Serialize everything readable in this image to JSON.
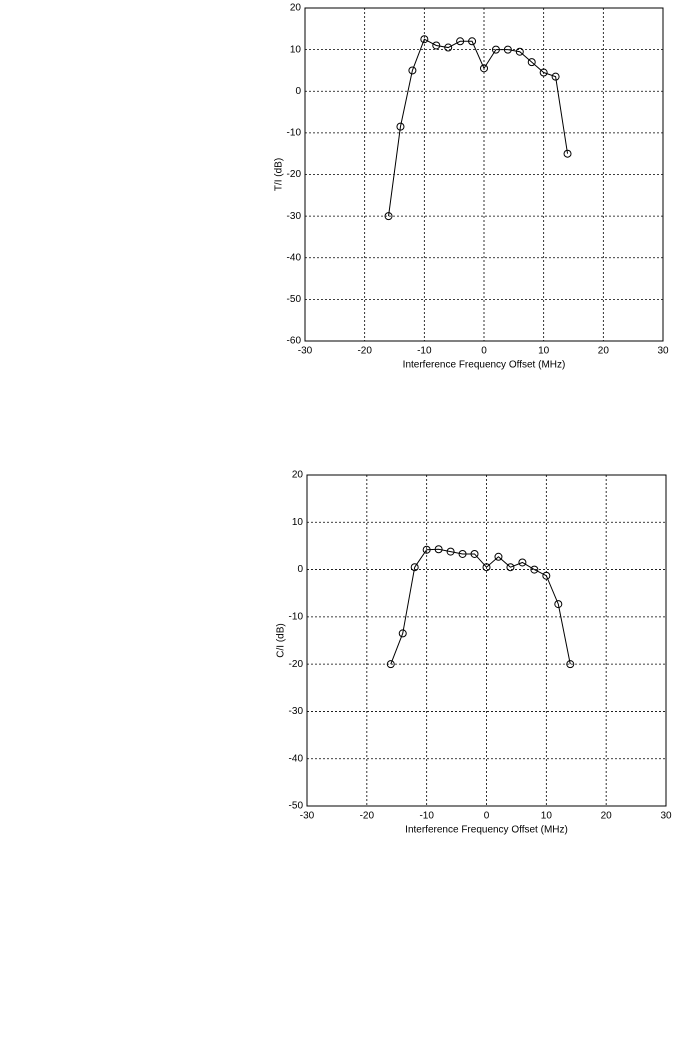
{
  "chart_data": [
    {
      "type": "line",
      "xlabel": "Interference Frequency Offset (MHz)",
      "ylabel": "T/I (dB)",
      "xlim": [
        -30,
        30
      ],
      "ylim": [
        -60,
        20
      ],
      "xticks": [
        -30,
        -20,
        -10,
        0,
        10,
        20,
        30
      ],
      "yticks": [
        -60,
        -50,
        -40,
        -30,
        -20,
        -10,
        0,
        10,
        20
      ],
      "grid": true,
      "series": [
        {
          "color": "#000000",
          "x": [
            -16,
            -14,
            -12,
            -10,
            -8,
            -6,
            -4,
            -2,
            0,
            2,
            4,
            6,
            8,
            10,
            12,
            14
          ],
          "values": [
            -30,
            -8.5,
            5,
            12.5,
            11,
            10.5,
            12,
            12,
            5.5,
            10,
            10,
            9.5,
            7,
            4.5,
            3.5,
            -15
          ]
        }
      ]
    },
    {
      "type": "line",
      "xlabel": "Interference Frequency Offset (MHz)",
      "ylabel": "C/I (dB)",
      "xlim": [
        -30,
        30
      ],
      "ylim": [
        -50,
        20
      ],
      "xticks": [
        -30,
        -20,
        -10,
        0,
        10,
        20,
        30
      ],
      "yticks": [
        -50,
        -40,
        -30,
        -20,
        -10,
        0,
        10,
        20
      ],
      "grid": true,
      "series": [
        {
          "color": "#000000",
          "x": [
            -16,
            -14,
            -12,
            -10,
            -8,
            -6,
            -4,
            -2,
            0,
            2,
            4,
            6,
            8,
            10,
            12,
            14
          ],
          "values": [
            -20,
            -13.5,
            0.5,
            4.2,
            4.3,
            3.8,
            3.3,
            3.3,
            0.5,
            2.7,
            0.5,
            1.5,
            0,
            -1.3,
            -7.3,
            -20
          ]
        }
      ]
    }
  ]
}
